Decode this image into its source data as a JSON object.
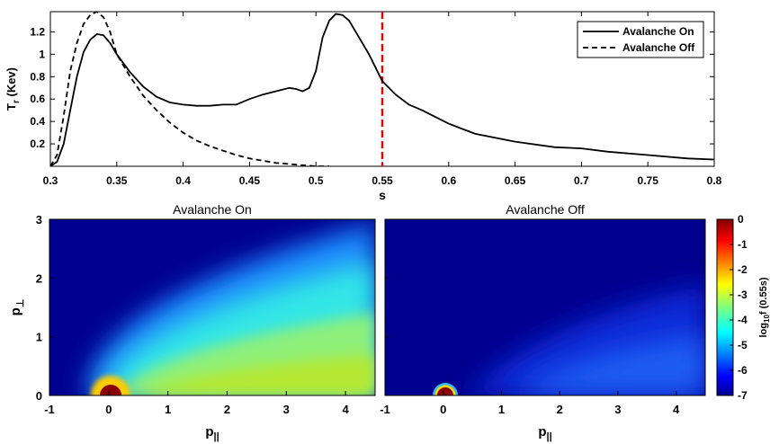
{
  "chart_data": [
    {
      "type": "line",
      "xlabel": "s",
      "ylabel": "T",
      "ylabel_sub": "r",
      "ylabel_unit": " (Kev)",
      "xlim": [
        0.3,
        0.8
      ],
      "ylim": [
        0,
        1.38
      ],
      "xticks": [
        0.3,
        0.35,
        0.4,
        0.45,
        0.5,
        0.55,
        0.6,
        0.65,
        0.7,
        0.75,
        0.8
      ],
      "xtick_labels": [
        "0.3",
        "0.35",
        "0.4",
        "0.45",
        "0.5",
        "0.55",
        "0.6",
        "0.65",
        "0.7",
        "0.75",
        "0.8"
      ],
      "yticks": [
        0.2,
        0.4,
        0.6,
        0.8,
        1.0,
        1.2
      ],
      "ytick_labels": [
        "0.2",
        "0.4",
        "0.6",
        "0.8",
        "1",
        "1.2"
      ],
      "legend_position": "top-right",
      "vline": {
        "x": 0.55,
        "color": "#d01010",
        "style": "dashed"
      },
      "series": [
        {
          "name": "Avalanche On",
          "style": "solid",
          "color": "#000000",
          "x": [
            0.3,
            0.305,
            0.31,
            0.315,
            0.32,
            0.325,
            0.33,
            0.335,
            0.34,
            0.345,
            0.35,
            0.36,
            0.37,
            0.38,
            0.39,
            0.4,
            0.41,
            0.42,
            0.43,
            0.44,
            0.45,
            0.46,
            0.47,
            0.48,
            0.485,
            0.49,
            0.495,
            0.5,
            0.505,
            0.51,
            0.515,
            0.52,
            0.525,
            0.53,
            0.54,
            0.55,
            0.56,
            0.57,
            0.58,
            0.6,
            0.62,
            0.65,
            0.68,
            0.7,
            0.72,
            0.75,
            0.78,
            0.8
          ],
          "y": [
            0.0,
            0.04,
            0.2,
            0.5,
            0.8,
            1.02,
            1.13,
            1.18,
            1.17,
            1.1,
            1.0,
            0.84,
            0.71,
            0.62,
            0.57,
            0.55,
            0.54,
            0.54,
            0.55,
            0.55,
            0.6,
            0.64,
            0.67,
            0.7,
            0.69,
            0.67,
            0.7,
            0.85,
            1.15,
            1.3,
            1.36,
            1.35,
            1.3,
            1.2,
            1.0,
            0.76,
            0.64,
            0.55,
            0.5,
            0.38,
            0.29,
            0.22,
            0.17,
            0.16,
            0.13,
            0.1,
            0.07,
            0.06
          ]
        },
        {
          "name": "Avalanche Off",
          "style": "dashed",
          "color": "#000000",
          "x": [
            0.3,
            0.305,
            0.31,
            0.315,
            0.32,
            0.325,
            0.33,
            0.335,
            0.34,
            0.345,
            0.35,
            0.36,
            0.37,
            0.38,
            0.39,
            0.4,
            0.41,
            0.42,
            0.43,
            0.44,
            0.45,
            0.46,
            0.47,
            0.48,
            0.49,
            0.5,
            0.51
          ],
          "y": [
            0.0,
            0.1,
            0.45,
            0.85,
            1.1,
            1.27,
            1.35,
            1.38,
            1.33,
            1.2,
            1.0,
            0.8,
            0.63,
            0.5,
            0.39,
            0.3,
            0.23,
            0.18,
            0.14,
            0.1,
            0.07,
            0.05,
            0.03,
            0.02,
            0.01,
            0.0,
            0.0
          ]
        }
      ]
    },
    {
      "type": "heatmap",
      "title": "Avalanche On",
      "xlabel": "p",
      "xlabel_sub": "||",
      "ylabel": "p",
      "ylabel_sub": "⊥",
      "xlim": [
        -1,
        4.5
      ],
      "ylim": [
        0,
        3
      ],
      "xticks": [
        -1,
        0,
        1,
        2,
        3,
        4
      ],
      "xtick_labels": [
        "-1",
        "0",
        "1",
        "2",
        "3",
        "4"
      ],
      "yticks": [
        0,
        1,
        2,
        3
      ],
      "ytick_labels": [
        "0",
        "1",
        "2",
        "3"
      ]
    },
    {
      "type": "heatmap",
      "title": "Avalanche Off",
      "xlim": [
        -1,
        4.5
      ],
      "ylim": [
        0,
        3
      ],
      "xlabel": "p",
      "xlabel_sub": "||",
      "xticks": [
        -1,
        0,
        1,
        2,
        3,
        4
      ],
      "xtick_labels": [
        "-1",
        "0",
        "1",
        "2",
        "3",
        "4"
      ],
      "yticks": [
        0,
        1,
        2,
        3
      ],
      "ytick_labels": [
        "0",
        "1",
        "2",
        "3"
      ]
    }
  ],
  "colorbar": {
    "label_prefix": "log",
    "label_sub": "10",
    "label_suffix": "f (0.55s)",
    "range": [
      -7,
      0
    ],
    "ticks": [
      0,
      -1,
      -2,
      -3,
      -4,
      -5,
      -6,
      -7
    ],
    "tick_labels": [
      "0",
      "-1",
      "-2",
      "-3",
      "-4",
      "-5",
      "-6",
      "-7"
    ],
    "colormap": "jet"
  }
}
